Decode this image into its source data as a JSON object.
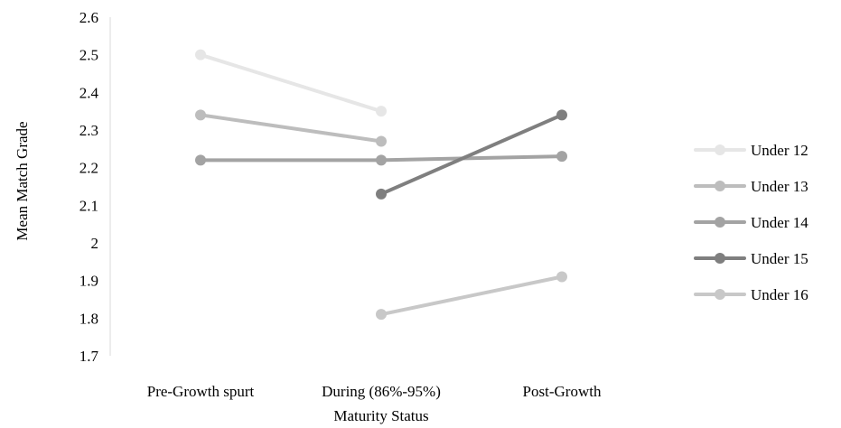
{
  "chart_data": {
    "type": "line",
    "categories": [
      "Pre-Growth spurt",
      "During (86%-95%)",
      "Post-Growth"
    ],
    "xlabel": "Maturity Status",
    "ylabel": "Mean Match Grade",
    "ylim": [
      1.7,
      2.6
    ],
    "yticks": [
      "1.7",
      "1.8",
      "1.9",
      "2",
      "2.1",
      "2.2",
      "2.3",
      "2.4",
      "2.5",
      "2.6"
    ],
    "grid": false,
    "legend_position": "right",
    "series": [
      {
        "name": "Under 12",
        "color": "#e6e6e6",
        "values": [
          2.5,
          2.35,
          null
        ]
      },
      {
        "name": "Under 13",
        "color": "#bdbdbd",
        "values": [
          2.34,
          2.27,
          null
        ]
      },
      {
        "name": "Under 14",
        "color": "#a3a3a3",
        "values": [
          2.22,
          2.22,
          2.23
        ]
      },
      {
        "name": "Under 15",
        "color": "#7f7f7f",
        "values": [
          null,
          2.13,
          2.34
        ]
      },
      {
        "name": "Under 16",
        "color": "#c8c8c8",
        "values": [
          null,
          1.81,
          1.91
        ]
      }
    ]
  }
}
